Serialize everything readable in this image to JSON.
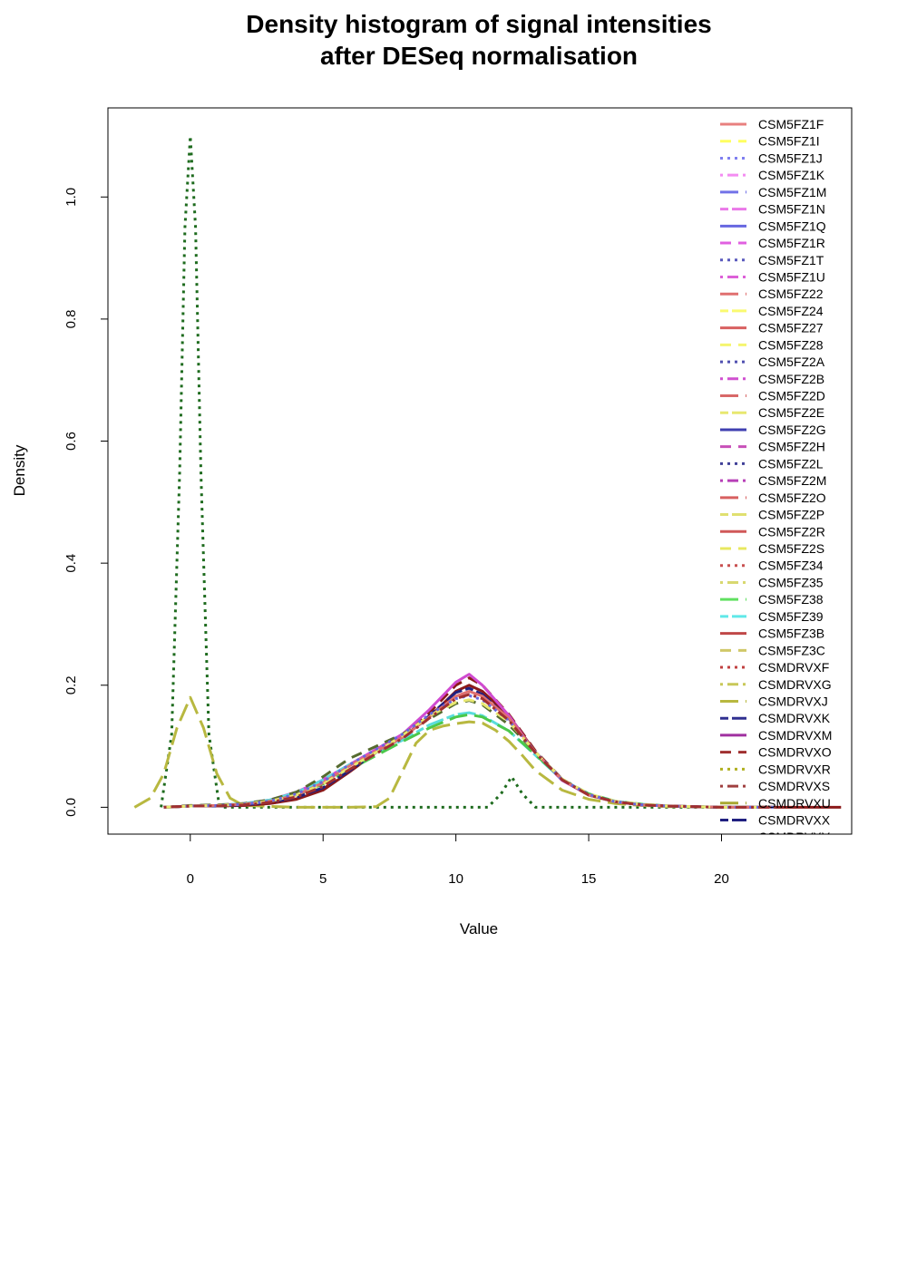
{
  "chart_data": {
    "type": "line",
    "title_lines": [
      "Density histogram of signal intensities",
      "after DESeq normalisation"
    ],
    "xlabel": "Value",
    "ylabel": "Density",
    "xlim": [
      -3.1,
      24.9
    ],
    "ylim": [
      -0.044,
      1.146
    ],
    "x_ticks": [
      0,
      5,
      10,
      15,
      20
    ],
    "y_ticks": [
      0.0,
      0.2,
      0.4,
      0.6,
      0.8,
      1.0
    ],
    "x_tick_labels": [
      "0",
      "5",
      "10",
      "15",
      "20"
    ],
    "y_tick_labels": [
      "0.0",
      "0.2",
      "0.4",
      "0.6",
      "0.8",
      "1.0"
    ],
    "grid": false,
    "legend_position": "top-right",
    "legend": [
      {
        "label": "CSM5FZ1F",
        "color": "#E8807F",
        "dash": "solid"
      },
      {
        "label": "CSM5FZ1I",
        "color": "#FFFF60",
        "dash": "dashed"
      },
      {
        "label": "CSM5FZ1J",
        "color": "#7F7FF0",
        "dash": "dotted"
      },
      {
        "label": "CSM5FZ1K",
        "color": "#F48CF2",
        "dash": "dotdash"
      },
      {
        "label": "CSM5FZ1M",
        "color": "#7272E8",
        "dash": "longdash"
      },
      {
        "label": "CSM5FZ1N",
        "color": "#EA78E8",
        "dash": "twodash"
      },
      {
        "label": "CSM5FZ1Q",
        "color": "#6767E0",
        "dash": "solid"
      },
      {
        "label": "CSM5FZ1R",
        "color": "#E060E0",
        "dash": "dashed"
      },
      {
        "label": "CSM5FZ1T",
        "color": "#5A5ABD",
        "dash": "dotted"
      },
      {
        "label": "CSM5FZ1U",
        "color": "#DC60D8",
        "dash": "dotdash"
      },
      {
        "label": "CSM5FZ22",
        "color": "#E07070",
        "dash": "longdash"
      },
      {
        "label": "CSM5FZ24",
        "color": "#FAFA70",
        "dash": "twodash"
      },
      {
        "label": "CSM5FZ27",
        "color": "#D86060",
        "dash": "solid"
      },
      {
        "label": "CSM5FZ28",
        "color": "#F5F570",
        "dash": "dashed"
      },
      {
        "label": "CSM5FZ2A",
        "color": "#5050B0",
        "dash": "dotted"
      },
      {
        "label": "CSM5FZ2B",
        "color": "#D050D0",
        "dash": "dotdash"
      },
      {
        "label": "CSM5FZ2D",
        "color": "#D86868",
        "dash": "longdash"
      },
      {
        "label": "CSM5FZ2E",
        "color": "#E8E870",
        "dash": "twodash"
      },
      {
        "label": "CSM5FZ2G",
        "color": "#4040B0",
        "dash": "solid"
      },
      {
        "label": "CSM5FZ2H",
        "color": "#C850B8",
        "dash": "dashed"
      },
      {
        "label": "CSM5FZ2L",
        "color": "#404098",
        "dash": "dotted"
      },
      {
        "label": "CSM5FZ2M",
        "color": "#B840B8",
        "dash": "dotdash"
      },
      {
        "label": "CSM5FZ2O",
        "color": "#D86060",
        "dash": "longdash"
      },
      {
        "label": "CSM5FZ2P",
        "color": "#E0E070",
        "dash": "twodash"
      },
      {
        "label": "CSM5FZ2R",
        "color": "#D05858",
        "dash": "solid"
      },
      {
        "label": "CSM5FZ2S",
        "color": "#E8E860",
        "dash": "dashed"
      },
      {
        "label": "CSM5FZ34",
        "color": "#C85050",
        "dash": "dotted"
      },
      {
        "label": "CSM5FZ35",
        "color": "#D8D870",
        "dash": "dotdash"
      },
      {
        "label": "CSM5FZ38",
        "color": "#60E060",
        "dash": "longdash"
      },
      {
        "label": "CSM5FZ39",
        "color": "#60E8E8",
        "dash": "twodash"
      },
      {
        "label": "CSM5FZ3B",
        "color": "#C04848",
        "dash": "solid"
      },
      {
        "label": "CSM5FZ3C",
        "color": "#D0C868",
        "dash": "dashed"
      },
      {
        "label": "CSMDRVXF",
        "color": "#C04040",
        "dash": "dotted"
      },
      {
        "label": "CSMDRVXG",
        "color": "#C8C858",
        "dash": "dotdash"
      },
      {
        "label": "CSMDRVXJ",
        "color": "#B8B840",
        "dash": "longdash"
      },
      {
        "label": "CSMDRVXK",
        "color": "#303090",
        "dash": "twodash"
      },
      {
        "label": "CSMDRVXM",
        "color": "#A030A0",
        "dash": "solid"
      },
      {
        "label": "CSMDRVXO",
        "color": "#A03030",
        "dash": "dashed"
      },
      {
        "label": "CSMDRVXR",
        "color": "#B0B020",
        "dash": "dotted"
      },
      {
        "label": "CSMDRVXS",
        "color": "#A04040",
        "dash": "dotdash"
      },
      {
        "label": "CSMDRVXU",
        "color": "#A8A830",
        "dash": "longdash"
      },
      {
        "label": "CSMDRVXX",
        "color": "#202080",
        "dash": "twodash"
      },
      {
        "label": "CSMDRVXY",
        "color": "#2A2A2A",
        "dash": "solid"
      }
    ],
    "series": [
      {
        "color": "#1E6B1E",
        "dash": "dotted",
        "width": 3,
        "x": [
          -1.1,
          -0.7,
          -0.4,
          -0.2,
          0,
          0.2,
          0.4,
          0.7,
          1.1,
          5,
          10,
          11.2,
          11.7,
          12.1,
          12.5,
          13.0,
          16,
          20
        ],
        "y": [
          0.0,
          0.12,
          0.55,
          0.95,
          1.1,
          0.95,
          0.55,
          0.12,
          0.0,
          0.0,
          0.0,
          0.0,
          0.022,
          0.05,
          0.022,
          0.0,
          0.0,
          0.0
        ]
      },
      {
        "color": "#B8B840",
        "dash": "longdash",
        "width": 3,
        "x": [
          -2.1,
          -1.5,
          -1.0,
          -0.5,
          0,
          0.5,
          1.0,
          1.5,
          2.0,
          4,
          6,
          7,
          7.5,
          8,
          8.5,
          9,
          9.5,
          10,
          10.5,
          11,
          11.5,
          12,
          12.5,
          13,
          14,
          15,
          16,
          17,
          18,
          20,
          22
        ],
        "y": [
          0.0,
          0.015,
          0.055,
          0.13,
          0.18,
          0.13,
          0.055,
          0.015,
          0.003,
          0.0,
          0.0,
          0.001,
          0.015,
          0.06,
          0.105,
          0.126,
          0.133,
          0.137,
          0.14,
          0.138,
          0.126,
          0.108,
          0.085,
          0.06,
          0.028,
          0.013,
          0.006,
          0.003,
          0.001,
          0.0,
          0.0
        ]
      },
      {
        "color": "#8B1A1A",
        "dash": "solid",
        "width": 3,
        "x": [
          -1,
          0,
          1,
          2,
          3,
          4,
          5,
          6,
          7,
          8,
          9,
          10,
          10.5,
          11,
          12,
          13,
          14,
          15,
          16,
          17,
          18,
          20,
          22,
          24.5
        ],
        "y": [
          0.0,
          0.002,
          0.002,
          0.003,
          0.006,
          0.013,
          0.028,
          0.058,
          0.09,
          0.115,
          0.148,
          0.19,
          0.2,
          0.19,
          0.15,
          0.09,
          0.045,
          0.02,
          0.009,
          0.004,
          0.002,
          0.0,
          0.0,
          0.0
        ]
      },
      {
        "color": "#8B1A1A",
        "dash": "dashed",
        "width": 3,
        "x": [
          -1,
          0,
          1,
          2,
          3,
          4,
          5,
          6,
          7,
          8,
          9,
          10,
          10.5,
          11,
          12,
          13,
          14,
          15,
          16,
          17,
          18,
          20,
          22
        ],
        "y": [
          0.0,
          0.002,
          0.002,
          0.003,
          0.006,
          0.014,
          0.03,
          0.06,
          0.093,
          0.12,
          0.155,
          0.2,
          0.212,
          0.2,
          0.152,
          0.092,
          0.046,
          0.02,
          0.009,
          0.004,
          0.002,
          0.0,
          0.0
        ]
      },
      {
        "color": "#D04BD0",
        "dash": "solid",
        "width": 3,
        "x": [
          -1,
          0,
          1,
          2,
          3,
          4,
          5,
          6,
          7,
          8,
          9,
          10,
          10.5,
          11,
          12,
          13,
          14,
          15,
          16,
          17,
          18,
          20,
          22
        ],
        "y": [
          0.0,
          0.002,
          0.003,
          0.006,
          0.012,
          0.025,
          0.045,
          0.07,
          0.095,
          0.12,
          0.16,
          0.205,
          0.218,
          0.2,
          0.15,
          0.088,
          0.044,
          0.02,
          0.009,
          0.004,
          0.002,
          0.0,
          0.0
        ]
      },
      {
        "color": "#5ADCDC",
        "dash": "twodash",
        "width": 3,
        "x": [
          -1,
          0,
          1,
          2,
          3,
          4,
          5,
          6,
          7,
          8,
          9,
          10,
          10.5,
          11,
          12,
          13,
          14,
          15,
          16,
          17,
          18,
          20,
          22
        ],
        "y": [
          0.0,
          0.002,
          0.003,
          0.006,
          0.012,
          0.024,
          0.045,
          0.07,
          0.09,
          0.11,
          0.135,
          0.152,
          0.155,
          0.15,
          0.125,
          0.085,
          0.045,
          0.022,
          0.01,
          0.005,
          0.002,
          0.0,
          0.0
        ]
      },
      {
        "color": "#4BC84B",
        "dash": "longdash",
        "width": 3,
        "x": [
          -1,
          0,
          1,
          2,
          3,
          4,
          5,
          6,
          7,
          8,
          9,
          10,
          10.5,
          11,
          12,
          13,
          14,
          15,
          16,
          17,
          18,
          20,
          22
        ],
        "y": [
          0.0,
          0.002,
          0.003,
          0.005,
          0.01,
          0.02,
          0.038,
          0.062,
          0.085,
          0.108,
          0.13,
          0.148,
          0.152,
          0.148,
          0.125,
          0.086,
          0.046,
          0.022,
          0.01,
          0.005,
          0.002,
          0.0,
          0.0
        ]
      },
      {
        "color": "#556B2F",
        "dash": "dashed",
        "width": 3,
        "x": [
          -1,
          0,
          1,
          2,
          3,
          4,
          5,
          6,
          7,
          8,
          9,
          10,
          10.5,
          11,
          12,
          13,
          14,
          15,
          16,
          17,
          18,
          20,
          22
        ],
        "y": [
          0.0,
          0.003,
          0.004,
          0.006,
          0.012,
          0.025,
          0.05,
          0.08,
          0.1,
          0.12,
          0.145,
          0.17,
          0.175,
          0.168,
          0.135,
          0.09,
          0.046,
          0.021,
          0.009,
          0.004,
          0.002,
          0.0,
          0.0
        ]
      },
      {
        "color": "#202080",
        "dash": "twodash",
        "width": 3,
        "x": [
          -1,
          0,
          1,
          2,
          3,
          4,
          5,
          6,
          7,
          8,
          9,
          10,
          10.5,
          11,
          12,
          13,
          14,
          15,
          16,
          17,
          18,
          20,
          22
        ],
        "y": [
          0.0,
          0.002,
          0.002,
          0.004,
          0.008,
          0.016,
          0.032,
          0.06,
          0.09,
          0.115,
          0.15,
          0.188,
          0.195,
          0.185,
          0.145,
          0.09,
          0.045,
          0.02,
          0.009,
          0.004,
          0.002,
          0.0,
          0.0
        ]
      },
      {
        "color": "#E07070",
        "dash": "solid",
        "width": 3,
        "x": [
          -1,
          0,
          1,
          2,
          3,
          4,
          5,
          6,
          7,
          8,
          9,
          10,
          10.5,
          11,
          12,
          13,
          14,
          15,
          16,
          17,
          18,
          20,
          22
        ],
        "y": [
          0.0,
          0.002,
          0.003,
          0.005,
          0.01,
          0.02,
          0.04,
          0.068,
          0.092,
          0.115,
          0.148,
          0.182,
          0.19,
          0.182,
          0.146,
          0.09,
          0.045,
          0.02,
          0.009,
          0.004,
          0.002,
          0.0,
          0.0
        ]
      },
      {
        "color": "#E8E870",
        "dash": "dashed",
        "width": 3,
        "x": [
          -1,
          0,
          1,
          2,
          3,
          4,
          5,
          6,
          7,
          8,
          9,
          10,
          10.5,
          11,
          12,
          13,
          14,
          15,
          16,
          17,
          18,
          20,
          22
        ],
        "y": [
          0.0,
          0.002,
          0.003,
          0.005,
          0.01,
          0.02,
          0.038,
          0.065,
          0.09,
          0.118,
          0.15,
          0.172,
          0.176,
          0.17,
          0.14,
          0.09,
          0.046,
          0.022,
          0.01,
          0.005,
          0.002,
          0.0,
          0.0
        ]
      },
      {
        "color": "#6767E0",
        "dash": "dotted",
        "width": 3,
        "x": [
          -1,
          0,
          1,
          2,
          3,
          4,
          5,
          6,
          7,
          8,
          9,
          10,
          10.5,
          11,
          12,
          13,
          14,
          15,
          16,
          17,
          18,
          20,
          22
        ],
        "y": [
          0.0,
          0.002,
          0.003,
          0.005,
          0.01,
          0.022,
          0.042,
          0.07,
          0.095,
          0.12,
          0.152,
          0.178,
          0.183,
          0.176,
          0.142,
          0.09,
          0.045,
          0.021,
          0.009,
          0.004,
          0.002,
          0.0,
          0.0
        ]
      },
      {
        "color": "#A03030",
        "dash": "dotdash",
        "width": 3,
        "x": [
          -1,
          0,
          1,
          2,
          3,
          4,
          5,
          6,
          7,
          8,
          9,
          10,
          10.5,
          11,
          12,
          13,
          14,
          15,
          16,
          17,
          18,
          20,
          22
        ],
        "y": [
          0.0,
          0.002,
          0.002,
          0.004,
          0.008,
          0.017,
          0.034,
          0.062,
          0.088,
          0.113,
          0.146,
          0.178,
          0.185,
          0.178,
          0.142,
          0.089,
          0.045,
          0.02,
          0.009,
          0.004,
          0.002,
          0.0,
          0.0
        ]
      }
    ]
  }
}
